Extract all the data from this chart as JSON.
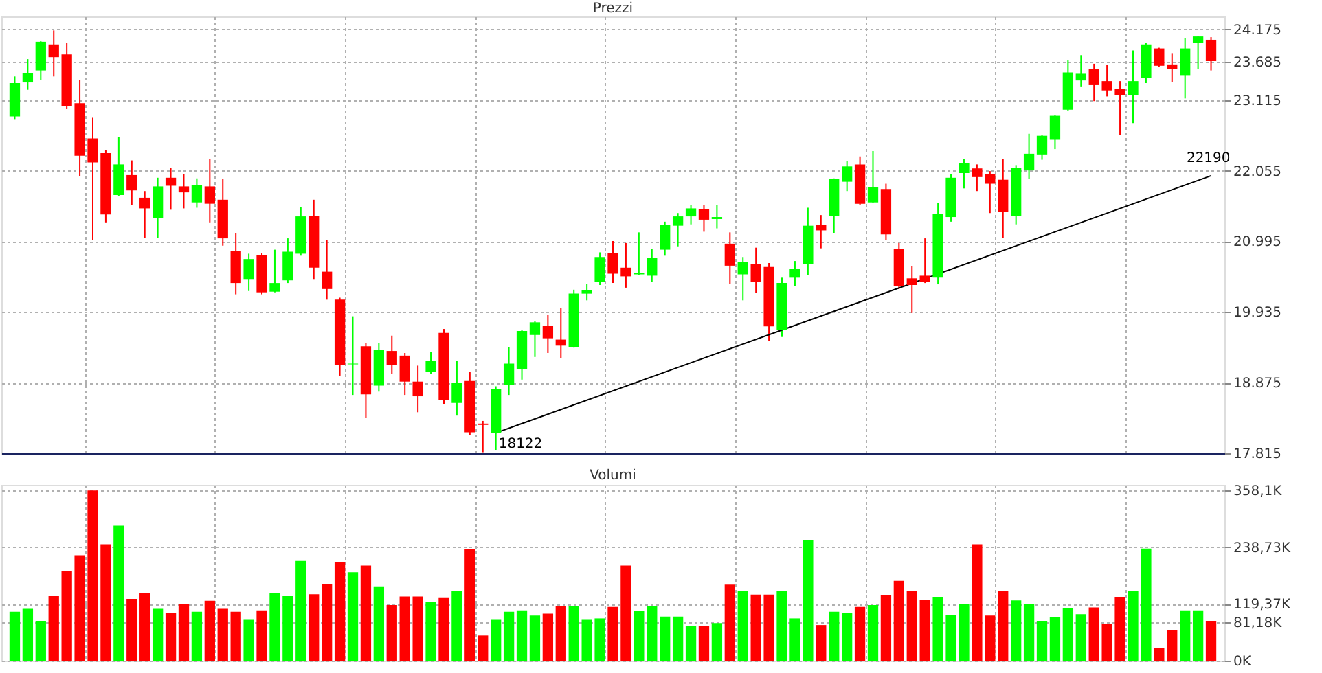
{
  "chart_data": [
    {
      "type": "candlestick",
      "title": "Prezzi",
      "tick_labels": "y",
      "grid": true,
      "categories": [
        null,
        null,
        null,
        null,
        null,
        null,
        null,
        null,
        null,
        null,
        null,
        null,
        null,
        null,
        null,
        null,
        null,
        null,
        null,
        null,
        null,
        null,
        null,
        null,
        null,
        null,
        null,
        null,
        null,
        null,
        null,
        null,
        null,
        null,
        null,
        null,
        null,
        null,
        null,
        null,
        null,
        null,
        null,
        null,
        null,
        null,
        null,
        null,
        null,
        null,
        null,
        null,
        null,
        null,
        null,
        null,
        null,
        null,
        null,
        null,
        null,
        null,
        null,
        null,
        null,
        null,
        null,
        null,
        null,
        null,
        null,
        null,
        null,
        null,
        null,
        null,
        null,
        null,
        null,
        null,
        null,
        null,
        null,
        null,
        null,
        null,
        null,
        null,
        null,
        null,
        null,
        null,
        null
      ],
      "ohlc": [
        [
          22870,
          23470,
          22820,
          23370
        ],
        [
          23380,
          23730,
          23270,
          23520
        ],
        [
          23560,
          24000,
          23420,
          23990
        ],
        [
          23950,
          24160,
          23470,
          23760
        ],
        [
          23800,
          23970,
          22980,
          23020
        ],
        [
          23070,
          23420,
          21970,
          22280
        ],
        [
          22540,
          22850,
          21010,
          22180
        ],
        [
          22320,
          22360,
          21280,
          21400
        ],
        [
          21690,
          22560,
          21670,
          22150
        ],
        [
          21990,
          22210,
          21540,
          21760
        ],
        [
          21650,
          21750,
          21050,
          21490
        ],
        [
          21340,
          21950,
          21050,
          21820
        ],
        [
          21950,
          22100,
          21470,
          21830
        ],
        [
          21820,
          22010,
          21490,
          21730
        ],
        [
          21580,
          21940,
          21500,
          21840
        ],
        [
          21820,
          22230,
          21280,
          21560
        ],
        [
          21620,
          21930,
          20930,
          21040
        ],
        [
          20850,
          21120,
          20200,
          20370
        ],
        [
          20430,
          20810,
          20250,
          20730
        ],
        [
          20790,
          20820,
          20200,
          20230
        ],
        [
          20240,
          20870,
          20230,
          20370
        ],
        [
          20410,
          21040,
          20370,
          20840
        ],
        [
          20810,
          21510,
          20780,
          21370
        ],
        [
          21370,
          21620,
          20430,
          20600
        ],
        [
          20540,
          21020,
          20120,
          20280
        ],
        [
          20120,
          20150,
          18980,
          19140
        ],
        [
          19150,
          19870,
          18690,
          19160
        ],
        [
          19420,
          19470,
          18350,
          18700
        ],
        [
          18830,
          19470,
          18740,
          19370
        ],
        [
          19350,
          19580,
          19000,
          19140
        ],
        [
          19280,
          19320,
          18690,
          18890
        ],
        [
          18890,
          19130,
          18430,
          18670
        ],
        [
          19040,
          19340,
          19010,
          19200
        ],
        [
          19620,
          19680,
          18550,
          18610
        ],
        [
          18570,
          19200,
          18380,
          18870
        ],
        [
          18900,
          19040,
          18090,
          18130
        ],
        [
          18260,
          18300,
          17830,
          18240
        ],
        [
          18120,
          18820,
          17860,
          18780
        ],
        [
          18840,
          19410,
          18690,
          19160
        ],
        [
          19080,
          19670,
          18920,
          19650
        ],
        [
          19590,
          19800,
          19260,
          19780
        ],
        [
          19730,
          19890,
          19320,
          19540
        ],
        [
          19520,
          20000,
          19240,
          19430
        ],
        [
          19410,
          20270,
          19400,
          20210
        ],
        [
          20210,
          20360,
          20110,
          20260
        ],
        [
          20390,
          20830,
          20340,
          20760
        ],
        [
          20820,
          21000,
          20370,
          20510
        ],
        [
          20600,
          20970,
          20300,
          20470
        ],
        [
          20500,
          21130,
          20490,
          20520
        ],
        [
          20480,
          20880,
          20390,
          20750
        ],
        [
          20870,
          21290,
          20780,
          21240
        ],
        [
          21230,
          21420,
          20920,
          21370
        ],
        [
          21370,
          21540,
          21250,
          21490
        ],
        [
          21480,
          21540,
          21140,
          21320
        ],
        [
          21330,
          21540,
          21190,
          21360
        ],
        [
          20960,
          21130,
          20360,
          20630
        ],
        [
          20500,
          20760,
          20110,
          20690
        ],
        [
          20650,
          20900,
          20220,
          20390
        ],
        [
          20610,
          20670,
          19500,
          19720
        ],
        [
          19670,
          20450,
          19560,
          20370
        ],
        [
          20450,
          20700,
          20320,
          20580
        ],
        [
          20650,
          21500,
          20490,
          21230
        ],
        [
          21240,
          21390,
          20890,
          21160
        ],
        [
          21380,
          21940,
          21120,
          21930
        ],
        [
          21890,
          22200,
          21750,
          22120
        ],
        [
          22150,
          22270,
          21540,
          21560
        ],
        [
          21580,
          22350,
          21570,
          21810
        ],
        [
          21780,
          21860,
          21010,
          21100
        ],
        [
          20880,
          20970,
          20280,
          20320
        ],
        [
          20440,
          20620,
          19920,
          20340
        ],
        [
          20480,
          21040,
          20370,
          20390
        ],
        [
          20450,
          21570,
          20350,
          21410
        ],
        [
          21360,
          22010,
          21290,
          21950
        ],
        [
          22020,
          22230,
          21790,
          22170
        ],
        [
          22090,
          22150,
          21750,
          21960
        ],
        [
          22010,
          22050,
          21420,
          21860
        ],
        [
          21920,
          22230,
          21050,
          21440
        ],
        [
          21370,
          22140,
          21250,
          22100
        ],
        [
          22060,
          22610,
          21930,
          22310
        ],
        [
          22300,
          22590,
          22220,
          22580
        ],
        [
          22520,
          22890,
          22380,
          22880
        ],
        [
          22970,
          23710,
          22950,
          23530
        ],
        [
          23410,
          23790,
          23320,
          23510
        ],
        [
          23580,
          23660,
          23100,
          23340
        ],
        [
          23400,
          23640,
          23170,
          23260
        ],
        [
          23280,
          23400,
          22590,
          23190
        ],
        [
          23190,
          23860,
          22770,
          23400
        ],
        [
          23450,
          23970,
          23370,
          23950
        ],
        [
          23890,
          23900,
          23610,
          23630
        ],
        [
          23650,
          23820,
          23390,
          23580
        ],
        [
          23490,
          24050,
          23140,
          23890
        ],
        [
          23970,
          24080,
          23580,
          24070
        ],
        [
          24020,
          24060,
          23560,
          23700
        ]
      ],
      "colors": [
        "#00ff00",
        "#00ff00",
        "#00ff00",
        "#ff0000",
        "#ff0000",
        "#ff0000",
        "#ff0000",
        "#ff0000",
        "#00ff00",
        "#ff0000",
        "#ff0000",
        "#00ff00",
        "#ff0000",
        "#ff0000",
        "#00ff00",
        "#ff0000",
        "#ff0000",
        "#ff0000",
        "#00ff00",
        "#ff0000",
        "#00ff00",
        "#00ff00",
        "#00ff00",
        "#ff0000",
        "#ff0000",
        "#ff0000",
        "#00ff00",
        "#ff0000",
        "#00ff00",
        "#ff0000",
        "#ff0000",
        "#ff0000",
        "#00ff00",
        "#ff0000",
        "#00ff00",
        "#ff0000",
        "#ff0000",
        "#00ff00",
        "#00ff00",
        "#00ff00",
        "#00ff00",
        "#ff0000",
        "#ff0000",
        "#00ff00",
        "#00ff00",
        "#00ff00",
        "#ff0000",
        "#ff0000",
        "#00ff00",
        "#00ff00",
        "#00ff00",
        "#00ff00",
        "#00ff00",
        "#ff0000",
        "#00ff00",
        "#ff0000",
        "#00ff00",
        "#ff0000",
        "#ff0000",
        "#00ff00",
        "#00ff00",
        "#00ff00",
        "#ff0000",
        "#00ff00",
        "#00ff00",
        "#ff0000",
        "#00ff00",
        "#ff0000",
        "#ff0000",
        "#ff0000",
        "#ff0000",
        "#00ff00",
        "#00ff00",
        "#00ff00",
        "#ff0000",
        "#ff0000",
        "#ff0000",
        "#00ff00",
        "#00ff00",
        "#00ff00",
        "#00ff00",
        "#00ff00",
        "#00ff00",
        "#ff0000",
        "#ff0000",
        "#ff0000",
        "#00ff00",
        "#00ff00",
        "#ff0000",
        "#ff0000",
        "#00ff00",
        "#00ff00",
        "#ff0000"
      ],
      "series": [
        {
          "type": "line",
          "color": "#000000",
          "values": [
            null,
            null,
            null,
            null,
            null,
            null,
            null,
            null,
            null,
            null,
            null,
            null,
            null,
            null,
            null,
            null,
            null,
            null,
            null,
            null,
            null,
            null,
            null,
            null,
            null,
            null,
            null,
            null,
            null,
            null,
            null,
            null,
            null,
            null,
            null,
            null,
            null,
            18120,
            null,
            null,
            null,
            null,
            null,
            null,
            null,
            null,
            null,
            null,
            null,
            null,
            null,
            null,
            null,
            null,
            null,
            null,
            null,
            null,
            null,
            null,
            null,
            null,
            null,
            null,
            null,
            null,
            null,
            null,
            null,
            null,
            null,
            null,
            null,
            null,
            null,
            null,
            null,
            null,
            null,
            null,
            null,
            null,
            null,
            null,
            null,
            null,
            null,
            null,
            null,
            null,
            null,
            null,
            21980
          ]
        }
      ],
      "annotations": [
        "18122",
        "22190"
      ],
      "ylim": [
        17815,
        24370
      ],
      "yticks": [
        {
          "value": 17815,
          "label": "17.815"
        },
        {
          "value": 18875,
          "label": "18.875"
        },
        {
          "value": 19935,
          "label": "19.935"
        },
        {
          "value": 20995,
          "label": "20.995"
        },
        {
          "value": 22055,
          "label": "22.055"
        },
        {
          "value": 23115,
          "label": "23.115"
        },
        {
          "value": 23685,
          "label": "23.685"
        },
        {
          "value": 24175,
          "label": "24.175"
        }
      ]
    },
    {
      "type": "bar",
      "title": "Volumi",
      "tick_labels": "y",
      "grid": true,
      "categories": [
        null,
        null,
        null,
        null,
        null,
        null,
        null,
        null,
        null,
        null,
        null,
        null,
        null,
        null,
        null,
        null,
        null,
        null,
        null,
        null,
        null,
        null,
        null,
        null,
        null,
        null,
        null,
        null,
        null,
        null,
        null,
        null,
        null,
        null,
        null,
        null,
        null,
        null,
        null,
        null,
        null,
        null,
        null,
        null,
        null,
        null,
        null,
        null,
        null,
        null,
        null,
        null,
        null,
        null,
        null,
        null,
        null,
        null,
        null,
        null,
        null,
        null,
        null,
        null,
        null,
        null,
        null,
        null,
        null,
        null,
        null,
        null,
        null,
        null,
        null,
        null,
        null,
        null,
        null,
        null,
        null,
        null,
        null,
        null,
        null,
        null,
        null,
        null,
        null,
        null,
        null,
        null,
        null
      ],
      "values": [
        103,
        109,
        83,
        136,
        189,
        222,
        358,
        245,
        284,
        130,
        142,
        109,
        101,
        119,
        103,
        126,
        109,
        103,
        86,
        106,
        142,
        136,
        210,
        140,
        162,
        207,
        186,
        200,
        155,
        117,
        135,
        135,
        124,
        132,
        146,
        234,
        53,
        86,
        103,
        106,
        95,
        99,
        114,
        114,
        86,
        89,
        113,
        200,
        104,
        114,
        93,
        93,
        73,
        73,
        79,
        160,
        147,
        139,
        139,
        147,
        89,
        253,
        75,
        103,
        101,
        113,
        117,
        138,
        168,
        146,
        128,
        134,
        97,
        120,
        245,
        95,
        146,
        127,
        119,
        83,
        91,
        110,
        98,
        112,
        77,
        134,
        146,
        236,
        26,
        64,
        106,
        106,
        83
      ],
      "colors": [
        "#00ff00",
        "#00ff00",
        "#00ff00",
        "#ff0000",
        "#ff0000",
        "#ff0000",
        "#ff0000",
        "#ff0000",
        "#00ff00",
        "#ff0000",
        "#ff0000",
        "#00ff00",
        "#ff0000",
        "#ff0000",
        "#00ff00",
        "#ff0000",
        "#ff0000",
        "#ff0000",
        "#00ff00",
        "#ff0000",
        "#00ff00",
        "#00ff00",
        "#00ff00",
        "#ff0000",
        "#ff0000",
        "#ff0000",
        "#00ff00",
        "#ff0000",
        "#00ff00",
        "#ff0000",
        "#ff0000",
        "#ff0000",
        "#00ff00",
        "#ff0000",
        "#00ff00",
        "#ff0000",
        "#ff0000",
        "#00ff00",
        "#00ff00",
        "#00ff00",
        "#00ff00",
        "#ff0000",
        "#ff0000",
        "#00ff00",
        "#00ff00",
        "#00ff00",
        "#ff0000",
        "#ff0000",
        "#00ff00",
        "#00ff00",
        "#00ff00",
        "#00ff00",
        "#00ff00",
        "#ff0000",
        "#00ff00",
        "#ff0000",
        "#00ff00",
        "#ff0000",
        "#ff0000",
        "#00ff00",
        "#00ff00",
        "#00ff00",
        "#ff0000",
        "#00ff00",
        "#00ff00",
        "#ff0000",
        "#00ff00",
        "#ff0000",
        "#ff0000",
        "#ff0000",
        "#ff0000",
        "#00ff00",
        "#00ff00",
        "#00ff00",
        "#ff0000",
        "#ff0000",
        "#ff0000",
        "#00ff00",
        "#00ff00",
        "#00ff00",
        "#00ff00",
        "#00ff00",
        "#00ff00",
        "#ff0000",
        "#ff0000",
        "#ff0000",
        "#00ff00",
        "#00ff00",
        "#ff0000",
        "#ff0000",
        "#00ff00",
        "#00ff00",
        "#ff0000"
      ],
      "ylim": [
        0,
        370
      ],
      "yticks": [
        {
          "value": 0,
          "label": "0K"
        },
        {
          "value": 81.18,
          "label": "81,18K"
        },
        {
          "value": 119.37,
          "label": "119,37K"
        },
        {
          "value": 238.73,
          "label": "238,73K"
        },
        {
          "value": 358.1,
          "label": "358,1K"
        }
      ]
    }
  ]
}
